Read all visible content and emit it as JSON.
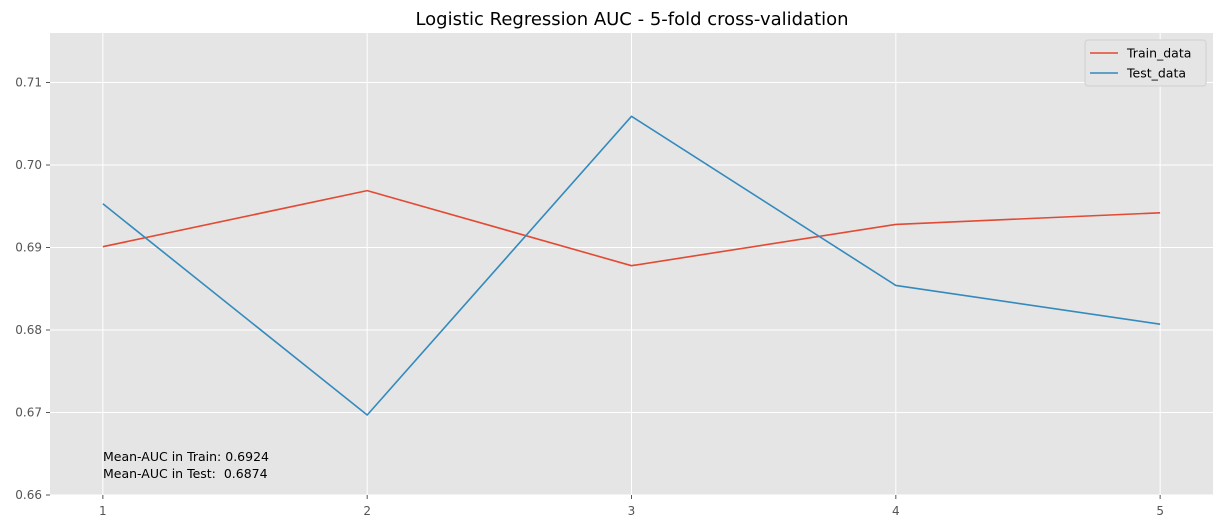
{
  "chart_data": {
    "type": "line",
    "title": "Logistic Regression AUC - 5-fold cross-validation",
    "xlabel": "",
    "ylabel": "",
    "x": [
      1,
      2,
      3,
      4,
      5
    ],
    "xticks": [
      "1",
      "2",
      "3",
      "4",
      "5"
    ],
    "yticks": [
      "0.66",
      "0.67",
      "0.68",
      "0.69",
      "0.70",
      "0.71"
    ],
    "ylim": [
      0.66,
      0.716
    ],
    "xlim": [
      0.8,
      5.2
    ],
    "grid": true,
    "legend_position": "top-right",
    "series": [
      {
        "name": "Train_data",
        "color": "#E24A33",
        "values": [
          0.6901,
          0.6969,
          0.6878,
          0.6928,
          0.6942
        ]
      },
      {
        "name": "Test_data",
        "color": "#348ABD",
        "values": [
          0.6953,
          0.6697,
          0.7059,
          0.6854,
          0.6807
        ]
      }
    ],
    "annotations": [
      "Mean-AUC in Train: 0.6924",
      "Mean-AUC in Test:  0.6874"
    ]
  }
}
